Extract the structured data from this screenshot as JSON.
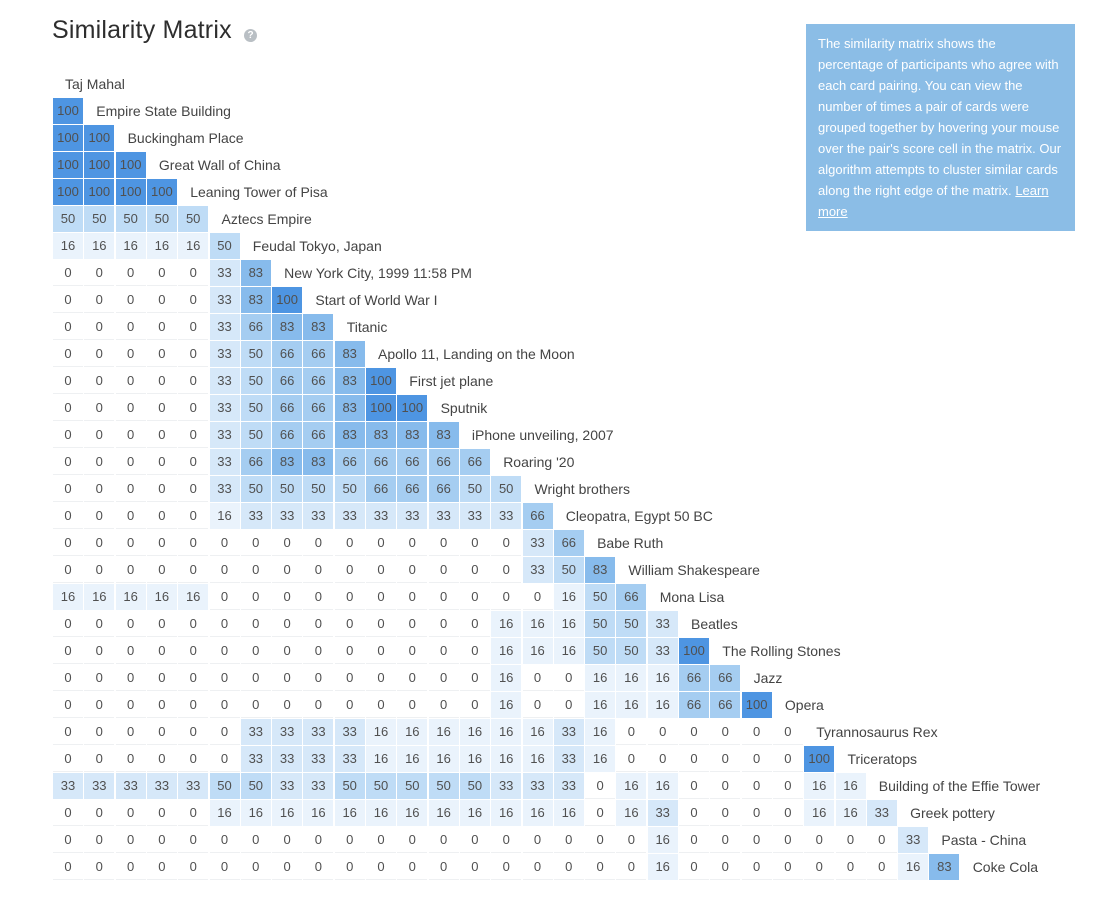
{
  "title": "Similarity Matrix",
  "help_icon": "question-circle-icon",
  "info": {
    "text": "The similarity matrix shows the percentage of participants who agree with each card pairing. You can view the number of times a pair of cards were grouped together by hovering your mouse over the pair's score cell in the matrix. Our algorithm attempts to cluster similar cards along the right edge of the matrix.",
    "link_label": "Learn more"
  },
  "colors": {
    "info_bg": "#8bbde6",
    "scale": [
      "#ffffff",
      "#eaf3fc",
      "#d6e8f9",
      "#bfdcf6",
      "#a5cdf1",
      "#87bbec",
      "#4e95e2"
    ]
  },
  "cards": [
    "Taj Mahal",
    "Empire State Building",
    "Buckingham Place",
    "Great Wall of China",
    "Leaning Tower of Pisa",
    "Aztecs Empire",
    "Feudal Tokyo, Japan",
    "New York City, 1999 11:58 PM",
    "Start of World War I",
    "Titanic",
    "Apollo 11, Landing on the Moon",
    "First jet plane",
    "Sputnik",
    "iPhone unveiling, 2007",
    "Roaring '20",
    "Wright brothers",
    "Cleopatra, Egypt 50 BC",
    "Babe Ruth",
    "William Shakespeare",
    "Mona Lisa",
    "Beatles",
    "The Rolling Stones",
    "Jazz",
    "Opera",
    "Tyrannosaurus Rex",
    "Triceratops",
    "Building of the Effie Tower",
    "Greek pottery",
    "Pasta - China",
    "Coke Cola"
  ],
  "matrix": [
    [],
    [
      100
    ],
    [
      100,
      100
    ],
    [
      100,
      100,
      100
    ],
    [
      100,
      100,
      100,
      100
    ],
    [
      50,
      50,
      50,
      50,
      50
    ],
    [
      16,
      16,
      16,
      16,
      16,
      50
    ],
    [
      0,
      0,
      0,
      0,
      0,
      33,
      83
    ],
    [
      0,
      0,
      0,
      0,
      0,
      33,
      83,
      100
    ],
    [
      0,
      0,
      0,
      0,
      0,
      33,
      66,
      83,
      83
    ],
    [
      0,
      0,
      0,
      0,
      0,
      33,
      50,
      66,
      66,
      83
    ],
    [
      0,
      0,
      0,
      0,
      0,
      33,
      50,
      66,
      66,
      83,
      100
    ],
    [
      0,
      0,
      0,
      0,
      0,
      33,
      50,
      66,
      66,
      83,
      100,
      100
    ],
    [
      0,
      0,
      0,
      0,
      0,
      33,
      50,
      66,
      66,
      83,
      83,
      83,
      83
    ],
    [
      0,
      0,
      0,
      0,
      0,
      33,
      66,
      83,
      83,
      66,
      66,
      66,
      66,
      66
    ],
    [
      0,
      0,
      0,
      0,
      0,
      33,
      50,
      50,
      50,
      50,
      66,
      66,
      66,
      50,
      50
    ],
    [
      0,
      0,
      0,
      0,
      0,
      16,
      33,
      33,
      33,
      33,
      33,
      33,
      33,
      33,
      33,
      66
    ],
    [
      0,
      0,
      0,
      0,
      0,
      0,
      0,
      0,
      0,
      0,
      0,
      0,
      0,
      0,
      0,
      33,
      66
    ],
    [
      0,
      0,
      0,
      0,
      0,
      0,
      0,
      0,
      0,
      0,
      0,
      0,
      0,
      0,
      0,
      33,
      50,
      83
    ],
    [
      16,
      16,
      16,
      16,
      16,
      0,
      0,
      0,
      0,
      0,
      0,
      0,
      0,
      0,
      0,
      0,
      16,
      50,
      66
    ],
    [
      0,
      0,
      0,
      0,
      0,
      0,
      0,
      0,
      0,
      0,
      0,
      0,
      0,
      0,
      16,
      16,
      16,
      50,
      50,
      33
    ],
    [
      0,
      0,
      0,
      0,
      0,
      0,
      0,
      0,
      0,
      0,
      0,
      0,
      0,
      0,
      16,
      16,
      16,
      50,
      50,
      33,
      100
    ],
    [
      0,
      0,
      0,
      0,
      0,
      0,
      0,
      0,
      0,
      0,
      0,
      0,
      0,
      0,
      16,
      0,
      0,
      16,
      16,
      16,
      66,
      66
    ],
    [
      0,
      0,
      0,
      0,
      0,
      0,
      0,
      0,
      0,
      0,
      0,
      0,
      0,
      0,
      16,
      0,
      0,
      16,
      16,
      16,
      66,
      66,
      100
    ],
    [
      0,
      0,
      0,
      0,
      0,
      0,
      33,
      33,
      33,
      33,
      16,
      16,
      16,
      16,
      16,
      16,
      33,
      16,
      0,
      0,
      0,
      0,
      0,
      0
    ],
    [
      0,
      0,
      0,
      0,
      0,
      0,
      33,
      33,
      33,
      33,
      16,
      16,
      16,
      16,
      16,
      16,
      33,
      16,
      0,
      0,
      0,
      0,
      0,
      0,
      100
    ],
    [
      33,
      33,
      33,
      33,
      33,
      50,
      50,
      33,
      33,
      50,
      50,
      50,
      50,
      50,
      33,
      33,
      33,
      0,
      16,
      16,
      0,
      0,
      0,
      0,
      16,
      16
    ],
    [
      0,
      0,
      0,
      0,
      0,
      16,
      16,
      16,
      16,
      16,
      16,
      16,
      16,
      16,
      16,
      16,
      16,
      0,
      16,
      33,
      0,
      0,
      0,
      0,
      16,
      16,
      33
    ],
    [
      0,
      0,
      0,
      0,
      0,
      0,
      0,
      0,
      0,
      0,
      0,
      0,
      0,
      0,
      0,
      0,
      0,
      0,
      0,
      16,
      0,
      0,
      0,
      0,
      0,
      0,
      0,
      33
    ],
    [
      0,
      0,
      0,
      0,
      0,
      0,
      0,
      0,
      0,
      0,
      0,
      0,
      0,
      0,
      0,
      0,
      0,
      0,
      0,
      16,
      0,
      0,
      0,
      0,
      0,
      0,
      0,
      16,
      83
    ]
  ]
}
